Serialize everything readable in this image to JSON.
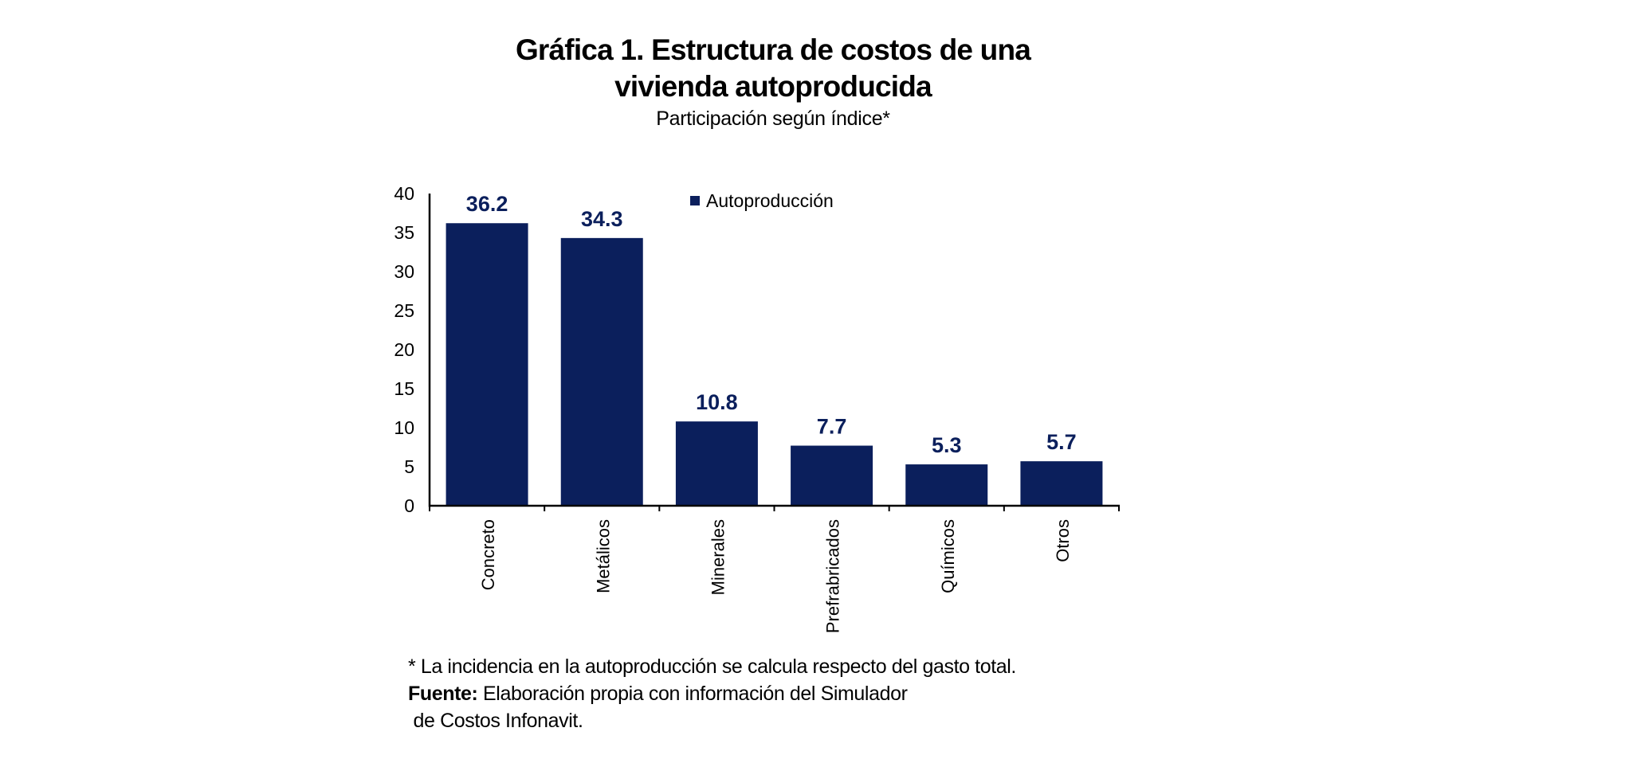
{
  "title_line1": "Gráfica 1. Estructura de costos de una",
  "title_line2": "vivienda autoproducida",
  "subtitle": "Participación según índice*",
  "footnote": "* La incidencia en la autoproducción se calcula respecto del gasto total.",
  "source_label": "Fuente:",
  "source_text_line1": " Elaboración propia con información del Simulador",
  "source_text_line2": " de Costos Infonavit.",
  "colors": {
    "bar": "#0b1f5c",
    "label": "#0b1f5c",
    "axis": "#000000"
  },
  "chart_data": {
    "type": "bar",
    "title": "Gráfica 1. Estructura de costos de una vivienda autoproducida",
    "subtitle": "Participación según índice*",
    "xlabel": "",
    "ylabel": "",
    "categories": [
      "Concreto",
      "Metálicos",
      "Minerales",
      "Prefrabricados",
      "Químicos",
      "Otros"
    ],
    "series": [
      {
        "name": "Autoproducción",
        "values": [
          36.2,
          34.3,
          10.8,
          7.7,
          5.3,
          5.7
        ],
        "labels": [
          "36.2",
          "34.3",
          "10.8",
          "7.7",
          "5.3",
          "5.7"
        ]
      }
    ],
    "ylim": [
      0,
      40
    ],
    "yticks": [
      0,
      5,
      10,
      15,
      20,
      25,
      30,
      35,
      40
    ],
    "ytick_labels": [
      "0",
      "5",
      "10",
      "15",
      "20",
      "25",
      "30",
      "35",
      "40"
    ],
    "grid": false,
    "legend": {
      "position": "top-center",
      "entries": [
        "Autoproducción"
      ]
    }
  }
}
